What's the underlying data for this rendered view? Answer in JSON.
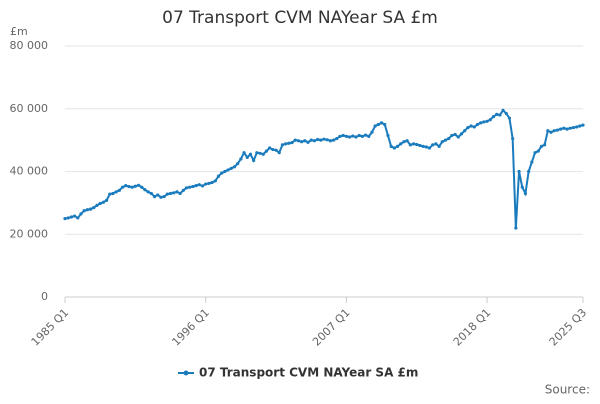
{
  "chart_data": {
    "type": "line",
    "title": "07 Transport CVM NAYear SA £m",
    "y_unit": "£m",
    "source": "Source:",
    "categories": [
      "1985 Q1",
      null,
      null,
      null,
      null,
      null,
      null,
      null,
      null,
      null,
      null,
      null,
      null,
      null,
      null,
      null,
      null,
      null,
      null,
      null,
      null,
      null,
      null,
      null,
      null,
      null,
      null,
      null,
      null,
      null,
      null,
      null,
      null,
      null,
      null,
      null,
      null,
      null,
      null,
      null,
      null,
      null,
      null,
      null,
      "1996 Q1",
      null,
      null,
      null,
      null,
      null,
      null,
      null,
      null,
      null,
      null,
      null,
      null,
      null,
      null,
      null,
      null,
      null,
      null,
      null,
      null,
      null,
      null,
      null,
      null,
      null,
      null,
      null,
      null,
      null,
      null,
      null,
      null,
      null,
      null,
      null,
      null,
      null,
      null,
      null,
      null,
      null,
      null,
      null,
      "2007 Q1",
      null,
      null,
      null,
      null,
      null,
      null,
      null,
      null,
      null,
      null,
      null,
      null,
      null,
      null,
      null,
      null,
      null,
      null,
      null,
      null,
      null,
      null,
      null,
      null,
      null,
      null,
      null,
      null,
      null,
      null,
      null,
      null,
      null,
      null,
      null,
      null,
      null,
      null,
      null,
      null,
      null,
      null,
      null,
      "2018 Q1",
      null,
      null,
      null,
      null,
      null,
      null,
      null,
      null,
      null,
      null,
      null,
      null,
      null,
      null,
      null,
      null,
      null,
      null,
      null,
      null,
      null,
      null,
      null,
      null,
      null,
      null,
      null,
      null,
      null,
      "2025 Q3"
    ],
    "series": [
      {
        "name": "07 Transport CVM NAYear SA £m",
        "color": "#1a7bbd",
        "values": [
          25000,
          25200,
          25500,
          25800,
          25200,
          26500,
          27500,
          27800,
          28000,
          28500,
          29200,
          29800,
          30200,
          30800,
          32800,
          33000,
          33500,
          34000,
          35000,
          35500,
          35200,
          35000,
          35300,
          35600,
          35000,
          34200,
          33500,
          33000,
          32000,
          32500,
          31800,
          32000,
          32800,
          33000,
          33200,
          33500,
          33000,
          34000,
          34800,
          35000,
          35200,
          35500,
          35800,
          35400,
          36000,
          36200,
          36500,
          37000,
          38500,
          39500,
          40000,
          40500,
          41000,
          41500,
          42500,
          44000,
          46000,
          44500,
          45500,
          43500,
          46000,
          45800,
          45500,
          46500,
          47500,
          47000,
          46800,
          46000,
          48500,
          48800,
          49000,
          49200,
          50000,
          49800,
          49500,
          49800,
          49300,
          50000,
          49800,
          50200,
          50000,
          50300,
          50100,
          49800,
          50000,
          50500,
          51200,
          51500,
          51200,
          51000,
          51300,
          51000,
          51500,
          51200,
          51600,
          51200,
          52500,
          54500,
          55000,
          55500,
          55000,
          51500,
          48000,
          47500,
          48000,
          48800,
          49500,
          49800,
          48500,
          48800,
          48600,
          48300,
          48000,
          47800,
          47500,
          48500,
          48800,
          48000,
          49500,
          50000,
          50500,
          51500,
          51800,
          51000,
          52000,
          53000,
          54000,
          54500,
          54200,
          55000,
          55500,
          55800,
          56000,
          56500,
          57500,
          58200,
          58000,
          59500,
          58500,
          57000,
          50500,
          22000,
          40000,
          35000,
          33000,
          40000,
          43000,
          46000,
          46500,
          48000,
          48500,
          53000,
          52500,
          53000,
          53200,
          53500,
          53800,
          53500,
          53800,
          54000,
          54200,
          54500,
          54800
        ]
      }
    ],
    "ylim": [
      0,
      80000
    ],
    "yticks": [
      0,
      {
        "value": 20000,
        "label": "20 000"
      },
      {
        "value": 40000,
        "label": "40 000"
      },
      {
        "value": 60000,
        "label": "60 000"
      },
      {
        "value": 80000,
        "label": "80 000"
      }
    ],
    "grid": true,
    "legend": "bottom"
  }
}
